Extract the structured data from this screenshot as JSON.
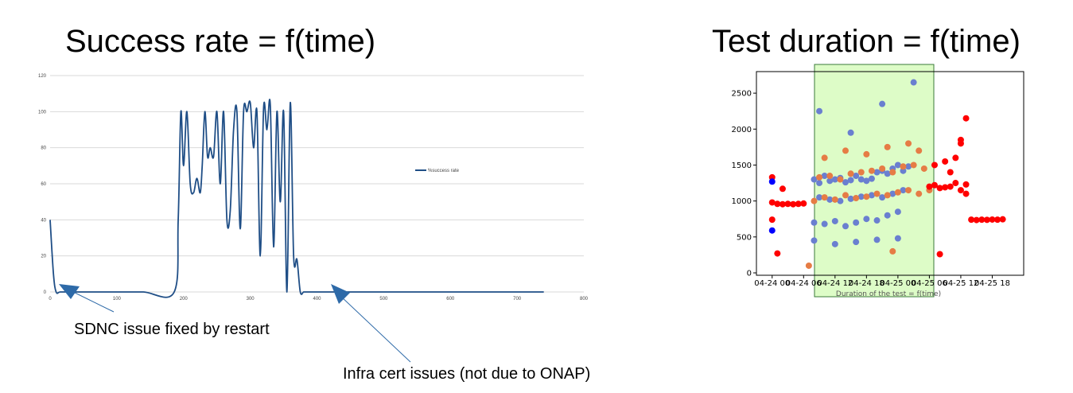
{
  "slide": {
    "title_left": "Success rate = f(time)",
    "title_right": "Test duration = f(time)",
    "annotations": [
      "SDNC issue fixed by restart",
      "Infra cert issues (not due to ONAP)"
    ]
  },
  "colors": {
    "line": "#1f4e86",
    "grid": "#d9d9d9",
    "annotation_arrow": "#2e6aa8",
    "scatter_blue": "#6a7fd0",
    "scatter_orange": "#e67c45",
    "scatter_red": "#ff0000",
    "highlight_fill": "#ddfcc7",
    "highlight_stroke": "#3a7a3a"
  },
  "chart_data": [
    {
      "type": "line",
      "title": "",
      "xlabel": "",
      "ylabel": "",
      "xlim": [
        0,
        800
      ],
      "ylim": [
        0,
        120
      ],
      "x_ticks": [
        0,
        100,
        200,
        300,
        400,
        500,
        600,
        700,
        800
      ],
      "y_ticks": [
        0,
        20,
        40,
        60,
        80,
        100,
        120
      ],
      "grid": true,
      "legend_position": "right",
      "series": [
        {
          "name": "%success rate",
          "x": [
            0,
            5,
            9,
            15,
            30,
            60,
            100,
            140,
            186,
            192,
            196,
            200,
            205,
            210,
            215,
            220,
            225,
            228,
            232,
            236,
            240,
            245,
            250,
            255,
            260,
            265,
            270,
            275,
            280,
            285,
            290,
            295,
            300,
            305,
            310,
            315,
            320,
            325,
            330,
            335,
            340,
            345,
            350,
            355,
            360,
            365,
            370,
            375,
            380,
            385,
            390,
            395,
            400,
            405,
            410,
            420,
            450,
            500,
            550,
            600,
            650,
            700,
            740
          ],
          "y": [
            40,
            10,
            0,
            0,
            0,
            0,
            0,
            0,
            0,
            40,
            100,
            70,
            100,
            60,
            55,
            63,
            55,
            70,
            100,
            75,
            80,
            75,
            100,
            60,
            100,
            40,
            45,
            90,
            100,
            35,
            100,
            100,
            105,
            80,
            100,
            20,
            102,
            90,
            104,
            25,
            100,
            50,
            100,
            0,
            105,
            20,
            18,
            0,
            0,
            0,
            0,
            0,
            0,
            0,
            0,
            0,
            0,
            0,
            0,
            0,
            0,
            0,
            0
          ]
        }
      ]
    },
    {
      "type": "scatter",
      "title": "",
      "xlabel": "Duration of the test = f(time)",
      "ylabel": "",
      "xlim": [
        "04-23 21:00",
        "04-26 00:00"
      ],
      "ylim": [
        0,
        2800
      ],
      "x_ticks": [
        "04-24 00",
        "04-24 06",
        "04-24 12",
        "04-24 18",
        "04-25 00",
        "04-25 06",
        "04-25 12",
        "04-25 18"
      ],
      "y_ticks": [
        0,
        500,
        1000,
        1500,
        2000,
        2500
      ],
      "highlight_range": [
        "04-24 06",
        "04-25 06"
      ],
      "series": [
        {
          "name": "blue",
          "x": [
            "04-24 08",
            "04-24 09",
            "04-24 10",
            "04-24 11",
            "04-24 12",
            "04-24 13",
            "04-24 14",
            "04-24 15",
            "04-24 16",
            "04-24 17",
            "04-24 18",
            "04-24 19",
            "04-24 20",
            "04-24 21",
            "04-24 22",
            "04-24 23",
            "04-25 00",
            "04-25 01",
            "04-25 02",
            "04-24 08",
            "04-24 10",
            "04-24 12",
            "04-24 14",
            "04-24 16",
            "04-24 18",
            "04-24 20",
            "04-24 22",
            "04-25 00",
            "04-24 09",
            "04-24 11",
            "04-24 13",
            "04-24 15",
            "04-24 17",
            "04-24 19",
            "04-24 21",
            "04-24 23",
            "04-25 01",
            "04-24 08",
            "04-24 12",
            "04-24 16",
            "04-24 20",
            "04-25 00",
            "04-24 09",
            "04-24 15",
            "04-24 21",
            "04-25 03"
          ],
          "y": [
            1300,
            1250,
            1350,
            1280,
            1300,
            1320,
            1260,
            1290,
            1350,
            1300,
            1280,
            1310,
            1400,
            1420,
            1380,
            1450,
            1500,
            1420,
            1480,
            700,
            680,
            720,
            650,
            700,
            750,
            730,
            800,
            850,
            1050,
            1020,
            1000,
            1030,
            1060,
            1080,
            1050,
            1100,
            1150,
            450,
            400,
            430,
            460,
            480,
            2250,
            1950,
            2350,
            2650
          ]
        },
        {
          "name": "orange",
          "x": [
            "04-24 08",
            "04-24 10",
            "04-24 12",
            "04-24 14",
            "04-24 16",
            "04-24 18",
            "04-24 20",
            "04-24 22",
            "04-25 00",
            "04-25 02",
            "04-25 04",
            "04-25 06",
            "04-24 09",
            "04-24 11",
            "04-24 13",
            "04-24 15",
            "04-24 17",
            "04-24 19",
            "04-24 21",
            "04-24 23",
            "04-25 01",
            "04-25 03",
            "04-25 05",
            "04-24 10",
            "04-24 14",
            "04-24 18",
            "04-24 22",
            "04-25 02",
            "04-25 04",
            "04-24 07",
            "04-24 23"
          ],
          "y": [
            1000,
            1050,
            1020,
            1080,
            1040,
            1060,
            1100,
            1080,
            1120,
            1150,
            1100,
            1150,
            1330,
            1350,
            1300,
            1380,
            1400,
            1420,
            1450,
            1400,
            1480,
            1500,
            1450,
            1600,
            1700,
            1650,
            1750,
            1800,
            1700,
            100,
            300
          ]
        },
        {
          "name": "red",
          "x": [
            "04-24 00",
            "04-24 01",
            "04-24 02",
            "04-24 03",
            "04-24 04",
            "04-24 05",
            "04-24 06",
            "04-24 00",
            "04-24 00",
            "04-24 01",
            "04-24 02",
            "04-25 06",
            "04-25 07",
            "04-25 08",
            "04-25 09",
            "04-25 10",
            "04-25 11",
            "04-25 12",
            "04-25 13",
            "04-25 07",
            "04-25 09",
            "04-25 11",
            "04-25 12",
            "04-25 13",
            "04-25 14",
            "04-25 15",
            "04-25 16",
            "04-25 17",
            "04-25 18",
            "04-25 19",
            "04-25 20",
            "04-25 10",
            "04-25 12",
            "04-25 13",
            "04-25 08"
          ],
          "y": [
            980,
            960,
            955,
            960,
            955,
            960,
            965,
            1330,
            740,
            270,
            1170,
            1200,
            1220,
            1180,
            1190,
            1200,
            1250,
            1150,
            1100,
            1500,
            1550,
            1600,
            1850,
            2150,
            740,
            735,
            740,
            738,
            742,
            740,
            745,
            1400,
            1800,
            1230,
            260
          ]
        },
        {
          "name": "darkblue",
          "x": [
            "04-24 00",
            "04-24 00"
          ],
          "y": [
            1270,
            590
          ]
        }
      ]
    }
  ]
}
